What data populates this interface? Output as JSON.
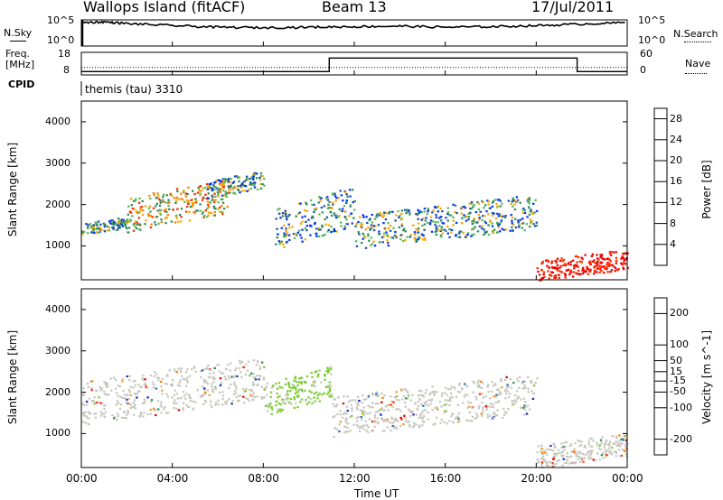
{
  "header": {
    "station": "Wallops Island (fitACF)",
    "beam": "Beam 13",
    "date": "17/Jul/2011"
  },
  "noise_panel": {
    "left_label": "N.Sky",
    "left_ticks": [
      "10^5",
      "10^0"
    ],
    "right_label": "N.Search",
    "right_ticks": [
      "10^5",
      "10^0"
    ]
  },
  "freq_panel": {
    "left_label_1": "Freq.",
    "left_label_2": "[MHz]",
    "left_ticks": [
      "18",
      "8"
    ],
    "right_label": "Nave",
    "right_ticks": [
      "60",
      "0"
    ]
  },
  "cpid": {
    "label": "CPID",
    "value": "themis (tau) 3310"
  },
  "colors": {
    "power": [
      "#0033ff",
      "#1d4fa8",
      "#2e8b57",
      "#5cb85c",
      "#f5a800",
      "#ff7f00",
      "#ff2a00",
      "#e60000"
    ],
    "velocity": [
      "#1c2fb8",
      "#2a6fbf",
      "#2e8b57",
      "#7ccd2d",
      "#c8c8c0",
      "#f0a020",
      "#ff7f00",
      "#ff3300",
      "#e60000"
    ],
    "noise_line": "#000000",
    "axis": "#000000"
  },
  "chart_data": [
    {
      "type": "heatmap",
      "name": "power",
      "ylabel": "Slant Range [km]",
      "yticks": [
        1000,
        2000,
        3000,
        4000
      ],
      "ylim": [
        180,
        4500
      ],
      "x": [
        "00:00",
        "04:00",
        "08:00",
        "12:00",
        "16:00",
        "20:00",
        "00:00"
      ],
      "colorbar": {
        "label": "Power [dB]",
        "ticks": [
          4,
          8,
          12,
          16,
          20,
          24,
          28
        ],
        "range": [
          0,
          30
        ]
      },
      "features": [
        {
          "time_h": [
            0,
            2
          ],
          "range_km": [
            1300,
            1700
          ],
          "level_db": "8-16"
        },
        {
          "time_h": [
            2,
            6.5
          ],
          "range_km": [
            1400,
            2600
          ],
          "level_db": "12-24"
        },
        {
          "time_h": [
            5.5,
            8
          ],
          "range_km": [
            2200,
            2800
          ],
          "level_db": "8-16"
        },
        {
          "time_h": [
            8.5,
            12
          ],
          "range_km": [
            1000,
            2400
          ],
          "level_db": "8-24"
        },
        {
          "time_h": [
            12,
            20
          ],
          "range_km": [
            1000,
            2200
          ],
          "level_db": "4-16"
        },
        {
          "time_h": [
            20,
            24
          ],
          "range_km": [
            200,
            900
          ],
          "level_db": "24-28+"
        }
      ]
    },
    {
      "type": "heatmap",
      "name": "velocity",
      "ylabel": "Slant Range [km]",
      "xlabel": "Time UT",
      "yticks": [
        1000,
        2000,
        3000,
        4000
      ],
      "ylim": [
        180,
        4500
      ],
      "x": [
        "00:00",
        "04:00",
        "08:00",
        "12:00",
        "16:00",
        "20:00",
        "00:00"
      ],
      "colorbar": {
        "label": "Velocity [m s^-1]",
        "ticks": [
          200,
          100,
          50,
          15,
          -15,
          -50,
          -100,
          -200
        ],
        "range": [
          -250,
          250
        ]
      },
      "features": [
        {
          "time_h": [
            0,
            8
          ],
          "range_km": [
            1300,
            2800
          ],
          "level_ms": "-15 to 15"
        },
        {
          "time_h": [
            8,
            11
          ],
          "range_km": [
            1500,
            2600
          ],
          "level_ms": "15 to 50"
        },
        {
          "time_h": [
            11,
            20
          ],
          "range_km": [
            1000,
            2400
          ],
          "level_ms": "-15 to 15"
        },
        {
          "time_h": [
            20,
            24
          ],
          "range_km": [
            200,
            1000
          ],
          "level_ms": "-15 to 15"
        }
      ]
    }
  ],
  "line_series": [
    {
      "name": "N.Sky",
      "panel": "noise",
      "x_hours": [
        0,
        1,
        2,
        4,
        6,
        8,
        10,
        12,
        14,
        16,
        18,
        20,
        22,
        24
      ],
      "log10_values": [
        4.5,
        4.6,
        4.3,
        3.9,
        3.6,
        3.5,
        3.6,
        3.7,
        3.8,
        3.6,
        3.7,
        3.9,
        4.2,
        4.5
      ]
    },
    {
      "name": "Freq. MHz",
      "panel": "freq",
      "x_hours": [
        0,
        10.9,
        10.9,
        21.8,
        21.8,
        24
      ],
      "values": [
        9.5,
        9.5,
        15.5,
        15.5,
        9.5,
        9.5
      ]
    },
    {
      "name": "Nave",
      "panel": "freq",
      "x_hours": [
        0,
        24
      ],
      "values": [
        20,
        20
      ]
    }
  ]
}
